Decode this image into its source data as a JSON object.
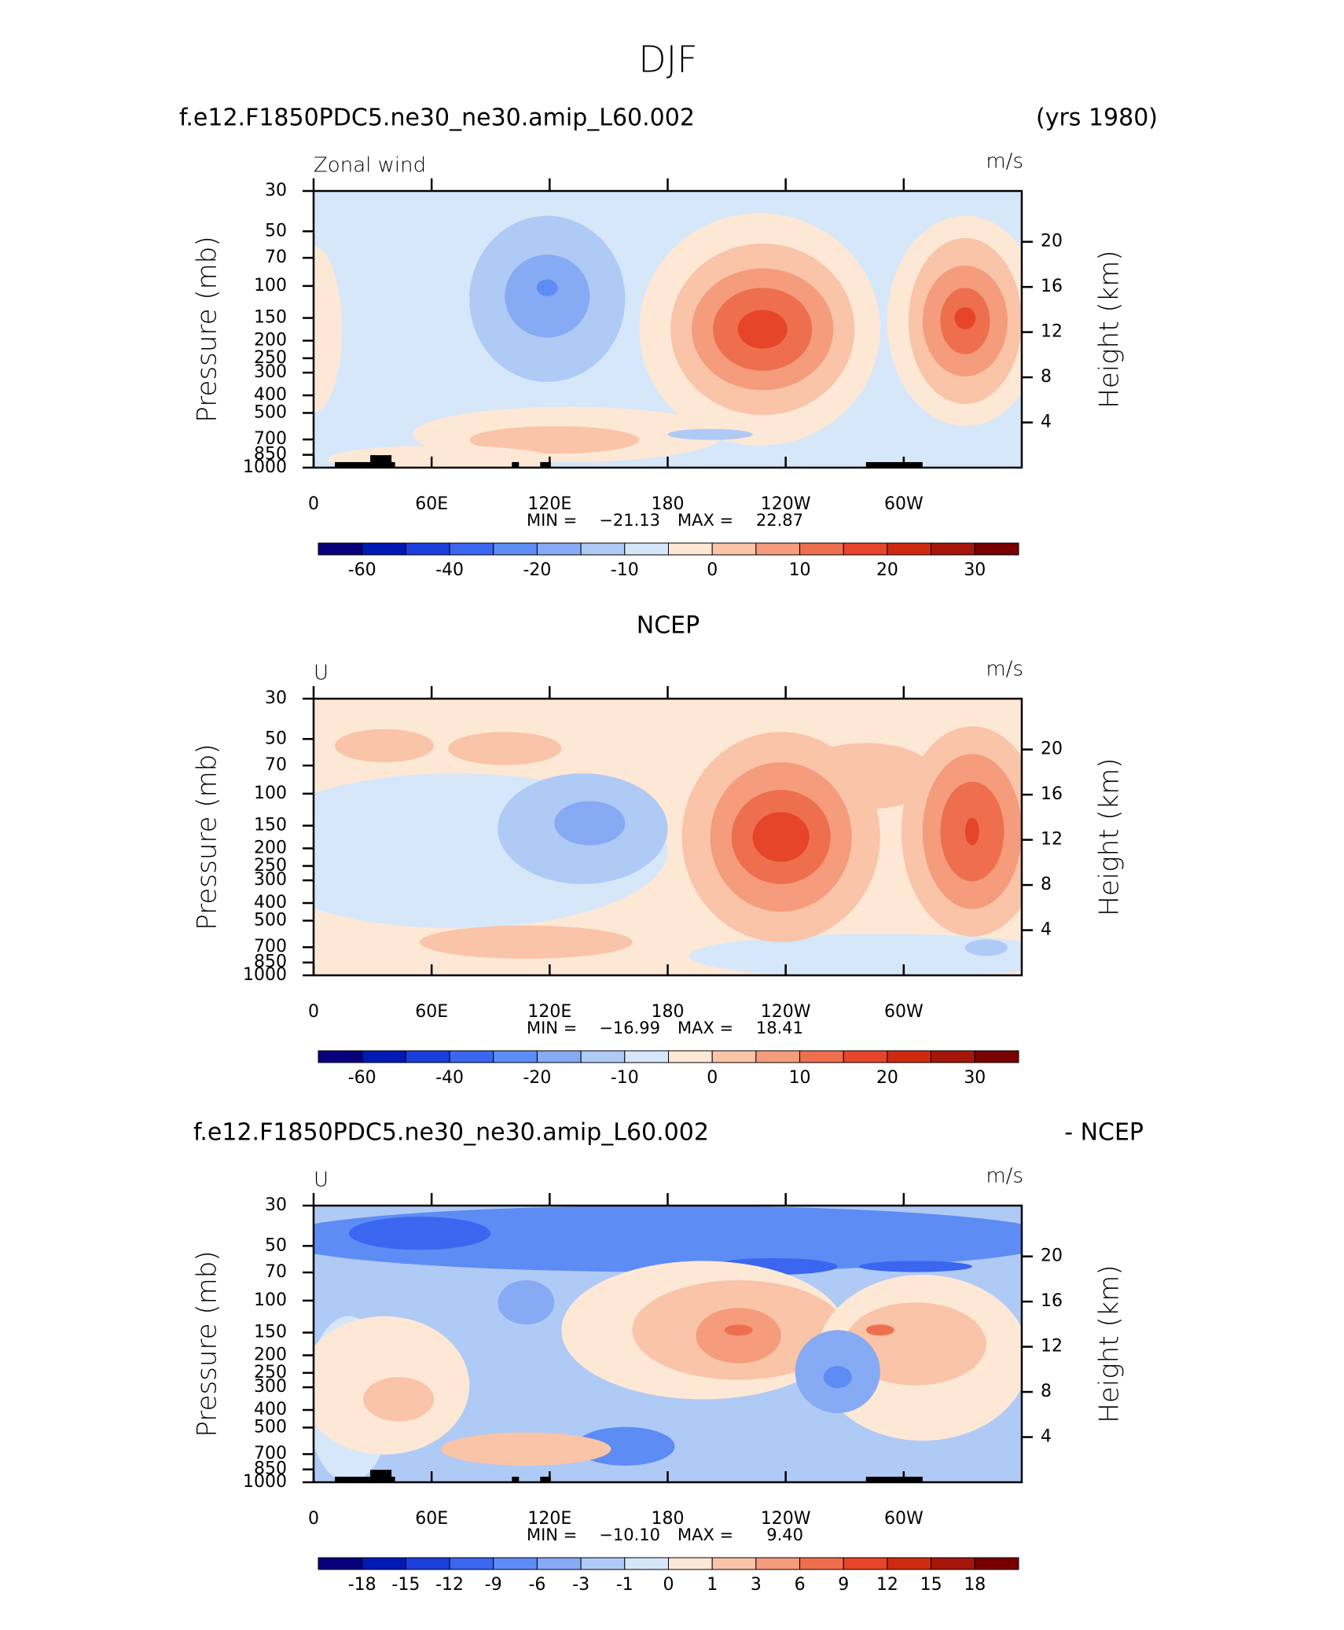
{
  "title": "DJF",
  "chart_data": [
    {
      "type": "contour",
      "title": "f.e12.F1850PDC5.ne30_ne30.amip_L60.002",
      "title_right": "(yrs 1980)",
      "title_align": "split",
      "left_label": "Zonal wind",
      "right_label": "m/s",
      "ylabel": "Pressure (mb)",
      "y2label": "Height (km)",
      "xlim": [
        0,
        360
      ],
      "xticks": [
        0,
        {
          "value": 60,
          "label": "60E"
        },
        {
          "value": 120,
          "label": "120E"
        },
        180,
        {
          "value": 240,
          "label": "120W"
        },
        {
          "value": 300,
          "label": "60W"
        }
      ],
      "ylim": [
        1000,
        30
      ],
      "ylog": true,
      "yticks": [
        30,
        50,
        70,
        100,
        150,
        200,
        250,
        300,
        400,
        500,
        700,
        850,
        1000
      ],
      "y2lim": [
        0,
        24.5
      ],
      "y2ticks": [
        4,
        8,
        12,
        16,
        20
      ],
      "stats": {
        "min_label": "MIN =",
        "min": "−21.13",
        "max_label": "MAX =",
        "max": "22.87"
      },
      "colorbar": {
        "colors": [
          "#08007a",
          "#0019b5",
          "#1b3fdc",
          "#3a66f0",
          "#5d8cf5",
          "#87aaf5",
          "#b0caf6",
          "#d6e7fa",
          "#fde8d6",
          "#f9c4a8",
          "#f49c7c",
          "#ee6f4e",
          "#e6452b",
          "#cf2a0f",
          "#a5170a",
          "#780000"
        ],
        "levels": [
          -60,
          null,
          -40,
          null,
          -20,
          null,
          -10,
          null,
          0,
          null,
          10,
          null,
          20,
          null,
          30
        ]
      }
    },
    {
      "type": "contour",
      "title": "NCEP",
      "title_align": "center",
      "left_label": "U",
      "right_label": "m/s",
      "ylabel": "Pressure (mb)",
      "y2label": "Height (km)",
      "xlim": [
        0,
        360
      ],
      "xticks": [
        0,
        {
          "value": 60,
          "label": "60E"
        },
        {
          "value": 120,
          "label": "120E"
        },
        180,
        {
          "value": 240,
          "label": "120W"
        },
        {
          "value": 300,
          "label": "60W"
        }
      ],
      "ylim": [
        1000,
        30
      ],
      "ylog": true,
      "yticks": [
        30,
        50,
        70,
        100,
        150,
        200,
        250,
        300,
        400,
        500,
        700,
        850,
        1000
      ],
      "y2lim": [
        0,
        24.5
      ],
      "y2ticks": [
        4,
        8,
        12,
        16,
        20
      ],
      "stats": {
        "min_label": "MIN =",
        "min": "−16.99",
        "max_label": "MAX =",
        "max": "18.41"
      },
      "colorbar": {
        "colors": [
          "#08007a",
          "#0019b5",
          "#1b3fdc",
          "#3a66f0",
          "#5d8cf5",
          "#87aaf5",
          "#b0caf6",
          "#d6e7fa",
          "#fde8d6",
          "#f9c4a8",
          "#f49c7c",
          "#ee6f4e",
          "#e6452b",
          "#cf2a0f",
          "#a5170a",
          "#780000"
        ],
        "levels": [
          -60,
          null,
          -40,
          null,
          -20,
          null,
          -10,
          null,
          0,
          null,
          10,
          null,
          20,
          null,
          30
        ]
      }
    },
    {
      "type": "contour",
      "title": "f.e12.F1850PDC5.ne30_ne30.amip_L60.002",
      "title_right": "- NCEP",
      "title_align": "split",
      "left_label": "U",
      "right_label": "m/s",
      "ylabel": "Pressure (mb)",
      "y2label": "Height (km)",
      "xlim": [
        0,
        360
      ],
      "xticks": [
        0,
        {
          "value": 60,
          "label": "60E"
        },
        {
          "value": 120,
          "label": "120E"
        },
        180,
        {
          "value": 240,
          "label": "120W"
        },
        {
          "value": 300,
          "label": "60W"
        }
      ],
      "ylim": [
        1000,
        30
      ],
      "ylog": true,
      "yticks": [
        30,
        50,
        70,
        100,
        150,
        200,
        250,
        300,
        400,
        500,
        700,
        850,
        1000
      ],
      "y2lim": [
        0,
        24.5
      ],
      "y2ticks": [
        4,
        8,
        12,
        16,
        20
      ],
      "stats": {
        "min_label": "MIN =",
        "min": "−10.10",
        "max_label": "MAX =",
        "max": "9.40"
      },
      "colorbar": {
        "colors": [
          "#08007a",
          "#0019b5",
          "#1b3fdc",
          "#3a66f0",
          "#5d8cf5",
          "#87aaf5",
          "#b0caf6",
          "#d6e7fa",
          "#fde8d6",
          "#f9c4a8",
          "#f49c7c",
          "#ee6f4e",
          "#e6452b",
          "#cf2a0f",
          "#a5170a",
          "#780000"
        ],
        "levels": [
          -18,
          -15,
          -12,
          -9,
          -6,
          -3,
          -1,
          0,
          1,
          3,
          6,
          9,
          12,
          15,
          18
        ]
      }
    }
  ]
}
